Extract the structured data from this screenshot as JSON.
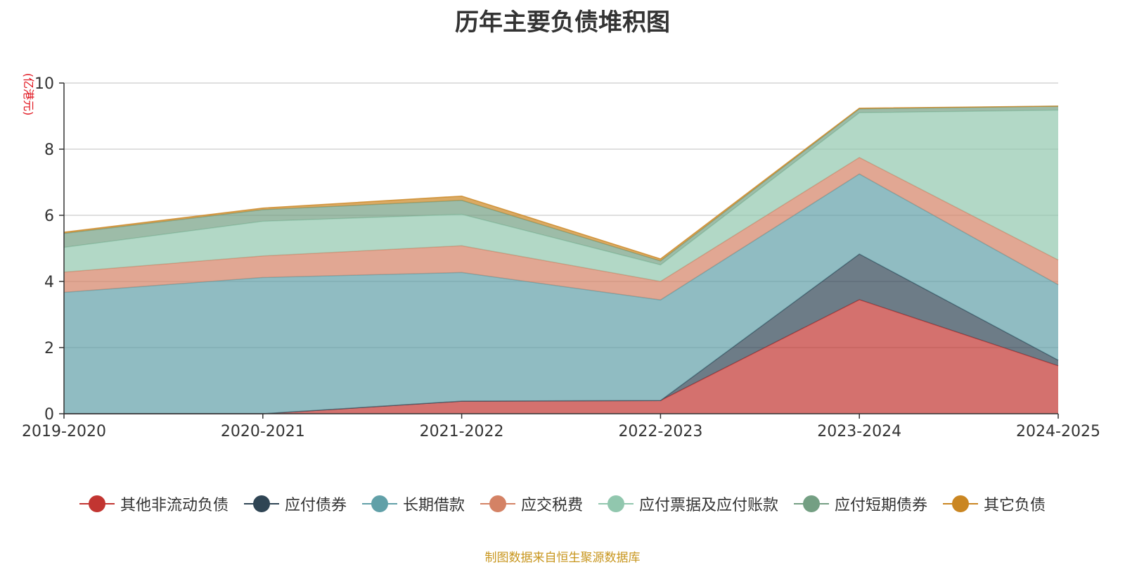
{
  "chart_data": {
    "type": "area",
    "stacked": true,
    "title": "历年主要负债堆积图",
    "unit_label": "(亿港元)",
    "categories": [
      "2019-2020",
      "2020-2021",
      "2021-2022",
      "2022-2023",
      "2023-2024",
      "2024-2025"
    ],
    "ylim": [
      0,
      10
    ],
    "yticks": [
      0,
      2,
      4,
      6,
      8,
      10
    ],
    "grid": true,
    "legend_position": "bottom",
    "series": [
      {
        "name": "其他非流动负债",
        "color": "#c23531",
        "values": [
          0.0,
          0.0,
          0.38,
          0.4,
          3.45,
          1.45
        ]
      },
      {
        "name": "应付债券",
        "color": "#2f4554",
        "values": [
          0.0,
          0.0,
          0.0,
          0.0,
          1.38,
          0.17
        ]
      },
      {
        "name": "长期借款",
        "color": "#61a0a8",
        "values": [
          3.67,
          4.12,
          3.89,
          3.04,
          2.42,
          2.28
        ]
      },
      {
        "name": "应交税费",
        "color": "#d48265",
        "values": [
          0.61,
          0.65,
          0.81,
          0.56,
          0.5,
          0.75
        ]
      },
      {
        "name": "应付票据及应付账款",
        "color": "#91c7ae",
        "values": [
          0.75,
          1.05,
          0.95,
          0.5,
          1.35,
          4.53
        ]
      },
      {
        "name": "应付短期债券",
        "color": "#749f83",
        "values": [
          0.42,
          0.35,
          0.42,
          0.12,
          0.12,
          0.12
        ]
      },
      {
        "name": "其它负债",
        "color": "#ca8622",
        "values": [
          0.04,
          0.05,
          0.13,
          0.06,
          0.02,
          0.0
        ]
      }
    ]
  },
  "footer": {
    "source": "制图数据来自恒生聚源数据库"
  }
}
